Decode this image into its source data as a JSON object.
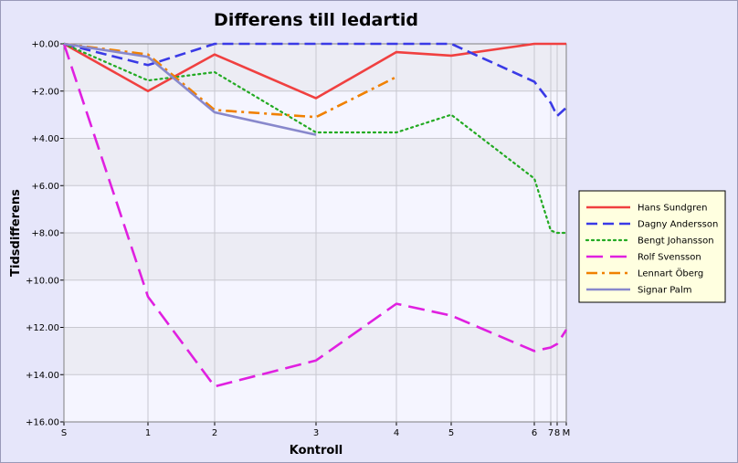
{
  "chart_data": {
    "type": "line",
    "title": "Differens till ledartid",
    "xlabel": "Kontroll",
    "ylabel": "Tidsdifferens",
    "x_ticks": [
      "S",
      "1",
      "2",
      "3",
      "4",
      "5",
      "6",
      "7",
      "8",
      "M"
    ],
    "y_ticks": [
      "+0.00",
      "+2.00",
      "+4.00",
      "+6.00",
      "+8.00",
      "+10.00",
      "+12.00",
      "+14.00",
      "+16.00"
    ],
    "ylim": [
      0,
      16
    ],
    "y_inverted": true,
    "legend_position": "right",
    "series": [
      {
        "name": "Hans Sundgren",
        "color": "#f04040",
        "style": "solid",
        "values": [
          0,
          2.0,
          0.45,
          2.3,
          0.35,
          0.5,
          0.0,
          0.0,
          0.0,
          0.0
        ]
      },
      {
        "name": "Dagny Andersson",
        "color": "#3a3ae6",
        "style": "dashed",
        "values": [
          0,
          0.9,
          0.0,
          0.0,
          0.0,
          0.0,
          1.6,
          2.5,
          3.05,
          2.7
        ]
      },
      {
        "name": "Bengt Johansson",
        "color": "#22aa22",
        "style": "dotted",
        "values": [
          0,
          1.55,
          1.2,
          3.75,
          3.75,
          3.0,
          5.7,
          7.9,
          8.0,
          8.0
        ]
      },
      {
        "name": "Rolf Svensson",
        "color": "#e020e0",
        "style": "longdash",
        "values": [
          0,
          10.7,
          14.5,
          13.4,
          11.0,
          11.5,
          13.0,
          12.85,
          12.7,
          12.1
        ]
      },
      {
        "name": "Lennart Öberg",
        "color": "#f08000",
        "style": "dashdot",
        "values": [
          0,
          0.45,
          2.8,
          3.1,
          1.4,
          null,
          null,
          null,
          null,
          null
        ]
      },
      {
        "name": "Signar Palm",
        "color": "#8888cc",
        "style": "solid",
        "values": [
          0,
          0.55,
          2.9,
          3.85,
          null,
          null,
          null,
          null,
          null,
          null
        ]
      }
    ]
  }
}
